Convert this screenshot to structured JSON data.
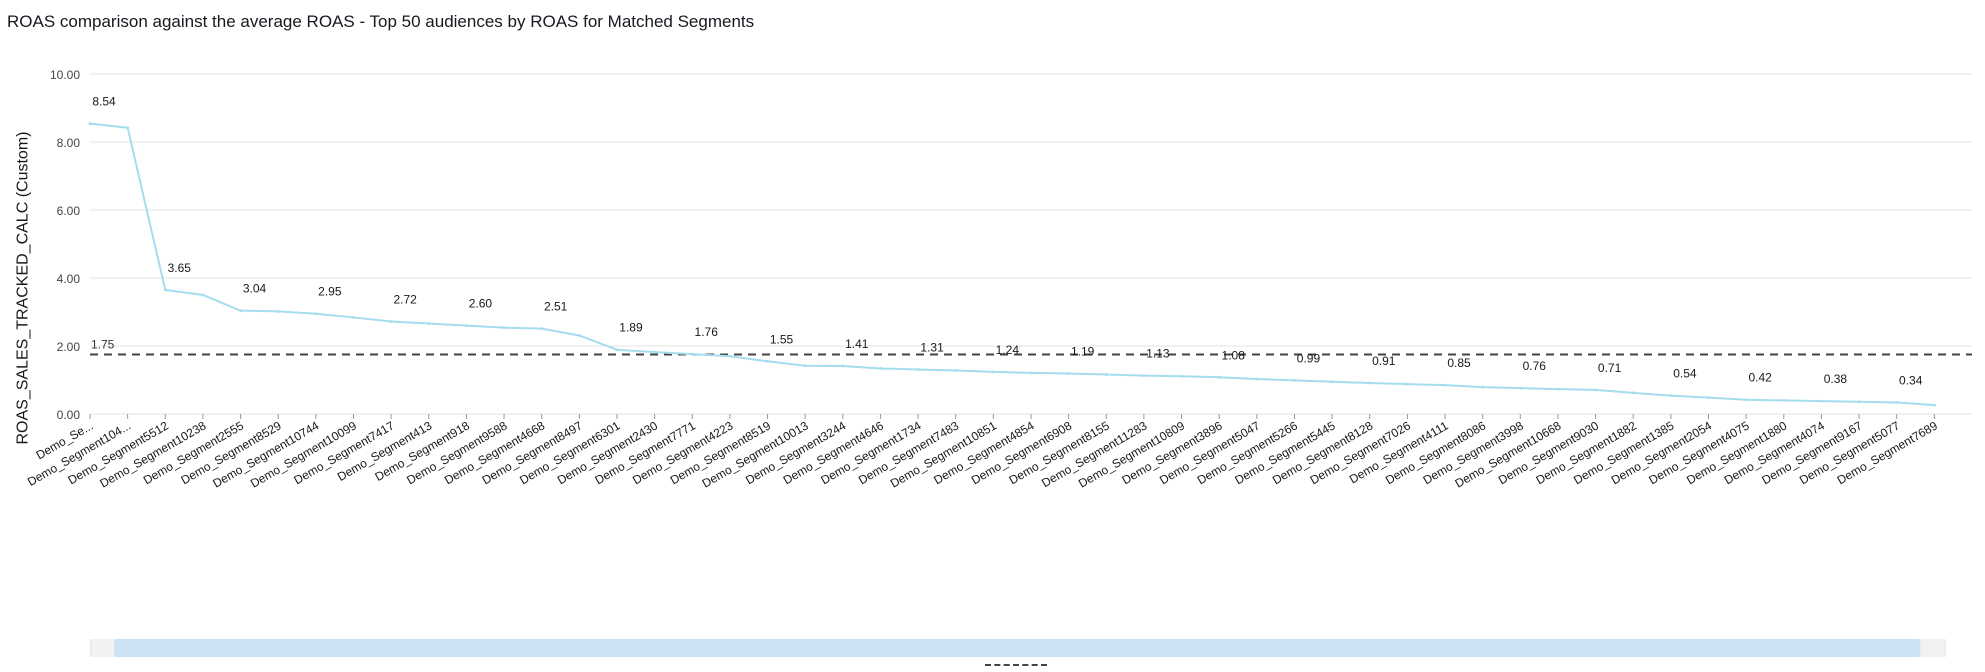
{
  "chart_data": {
    "type": "line",
    "title": "ROAS comparison against the average ROAS - Top 50 audiences by ROAS for Matched Segments",
    "ylabel": "ROAS_SALES_TRACKED_CALC (Custom)",
    "xlabel": "",
    "ylim": [
      0,
      10
    ],
    "yticks": [
      "10.00",
      "8.00",
      "6.00",
      "4.00",
      "2.00",
      "0.00"
    ],
    "grid": "horizontal",
    "reference_line": {
      "value": 1.75,
      "label": "1.75",
      "style": "dashed"
    },
    "categories": [
      "Demo_Se...",
      "Demo_Segment104...",
      "Demo_Segment5512",
      "Demo_Segment10238",
      "Demo_Segment2555",
      "Demo_Segment8529",
      "Demo_Segment10744",
      "Demo_Segment10099",
      "Demo_Segment7417",
      "Demo_Segment413",
      "Demo_Segment918",
      "Demo_Segment9588",
      "Demo_Segment4668",
      "Demo_Segment8497",
      "Demo_Segment6301",
      "Demo_Segment2430",
      "Demo_Segment7771",
      "Demo_Segment4223",
      "Demo_Segment8519",
      "Demo_Segment10013",
      "Demo_Segment3244",
      "Demo_Segment4646",
      "Demo_Segment1734",
      "Demo_Segment7483",
      "Demo_Segment10851",
      "Demo_Segment4854",
      "Demo_Segment6908",
      "Demo_Segment8155",
      "Demo_Segment11283",
      "Demo_Segment10809",
      "Demo_Segment3896",
      "Demo_Segment5047",
      "Demo_Segment5266",
      "Demo_Segment5445",
      "Demo_Segment8128",
      "Demo_Segment7026",
      "Demo_Segment4111",
      "Demo_Segment8086",
      "Demo_Segment3998",
      "Demo_Segment10668",
      "Demo_Segment9030",
      "Demo_Segment1882",
      "Demo_Segment1385",
      "Demo_Segment2054",
      "Demo_Segment4075",
      "Demo_Segment1880",
      "Demo_Segment4074",
      "Demo_Segment9167",
      "Demo_Segment5077",
      "Demo_Segment7689"
    ],
    "values": [
      8.54,
      8.42,
      3.65,
      3.5,
      3.04,
      3.02,
      2.95,
      2.84,
      2.72,
      2.66,
      2.6,
      2.54,
      2.51,
      2.31,
      1.89,
      1.82,
      1.76,
      1.7,
      1.55,
      1.42,
      1.41,
      1.34,
      1.31,
      1.28,
      1.24,
      1.21,
      1.19,
      1.16,
      1.13,
      1.11,
      1.08,
      1.03,
      0.99,
      0.95,
      0.91,
      0.88,
      0.85,
      0.79,
      0.76,
      0.73,
      0.71,
      0.62,
      0.54,
      0.48,
      0.42,
      0.4,
      0.38,
      0.36,
      0.34,
      0.26
    ],
    "data_labels": [
      {
        "index": 0,
        "text": "8.54"
      },
      {
        "index": 2,
        "text": "3.65"
      },
      {
        "index": 4,
        "text": "3.04"
      },
      {
        "index": 6,
        "text": "2.95"
      },
      {
        "index": 8,
        "text": "2.72"
      },
      {
        "index": 10,
        "text": "2.60"
      },
      {
        "index": 12,
        "text": "2.51"
      },
      {
        "index": 14,
        "text": "1.89"
      },
      {
        "index": 16,
        "text": "1.76"
      },
      {
        "index": 18,
        "text": "1.55"
      },
      {
        "index": 20,
        "text": "1.41"
      },
      {
        "index": 22,
        "text": "1.31"
      },
      {
        "index": 24,
        "text": "1.24"
      },
      {
        "index": 26,
        "text": "1.19"
      },
      {
        "index": 28,
        "text": "1.13"
      },
      {
        "index": 30,
        "text": "1.08"
      },
      {
        "index": 32,
        "text": "0.99"
      },
      {
        "index": 34,
        "text": "0.91"
      },
      {
        "index": 36,
        "text": "0.85"
      },
      {
        "index": 38,
        "text": "0.76"
      },
      {
        "index": 40,
        "text": "0.71"
      },
      {
        "index": 42,
        "text": "0.54"
      },
      {
        "index": 44,
        "text": "0.42"
      },
      {
        "index": 46,
        "text": "0.38"
      },
      {
        "index": 48,
        "text": "0.34"
      }
    ],
    "colors": {
      "series": "#a6dcef",
      "reference": "#444444",
      "grid": "#e3e3e3",
      "scroll_thumb": "#cde3f5"
    }
  }
}
